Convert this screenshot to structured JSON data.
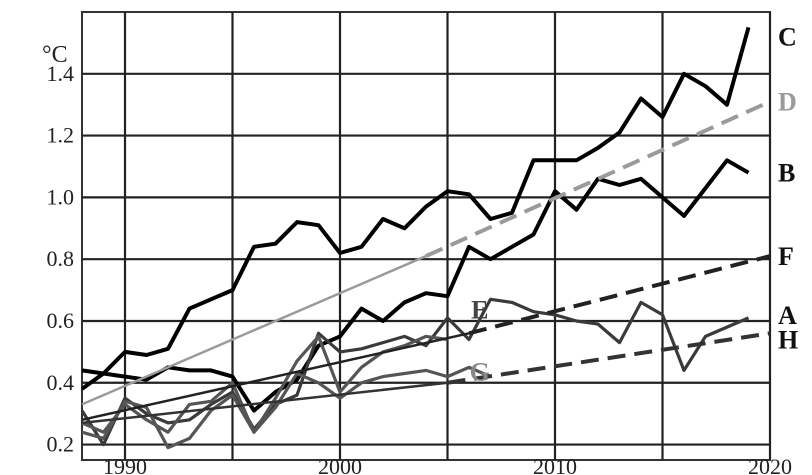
{
  "chart_data": {
    "type": "line",
    "title": "",
    "xlabel": "",
    "ylabel": "°C",
    "xlim": [
      1988,
      2020
    ],
    "ylim": [
      0.15,
      1.6
    ],
    "x_ticks": [
      1990,
      2000,
      2010,
      2020
    ],
    "y_ticks": [
      0.2,
      0.4,
      0.6,
      0.8,
      1.0,
      1.2,
      1.4
    ],
    "grid": true,
    "series": [
      {
        "name": "C",
        "color": "#000000",
        "style": "solid",
        "x": [
          1988,
          1989,
          1990,
          1991,
          1992,
          1993,
          1994,
          1995,
          1996,
          1997,
          1998,
          1999,
          2000,
          2001,
          2002,
          2003,
          2004,
          2005,
          2006,
          2007,
          2008,
          2009,
          2010,
          2011,
          2012,
          2013,
          2014,
          2015,
          2016,
          2017,
          2018,
          2019
        ],
        "y": [
          0.44,
          0.43,
          0.5,
          0.49,
          0.51,
          0.64,
          0.67,
          0.7,
          0.84,
          0.85,
          0.92,
          0.91,
          0.82,
          0.84,
          0.93,
          0.9,
          0.97,
          1.02,
          1.01,
          0.93,
          0.95,
          1.12,
          1.12,
          1.12,
          1.16,
          1.21,
          1.32,
          1.26,
          1.4,
          1.36,
          1.3,
          1.55
        ]
      },
      {
        "name": "B",
        "color": "#000000",
        "style": "solid",
        "x": [
          1988,
          1989,
          1990,
          1991,
          1992,
          1993,
          1994,
          1995,
          1996,
          1997,
          1998,
          1999,
          2000,
          2001,
          2002,
          2003,
          2004,
          2005,
          2006,
          2007,
          2008,
          2009,
          2010,
          2011,
          2012,
          2013,
          2014,
          2015,
          2016,
          2017,
          2018,
          2019
        ],
        "y": [
          0.38,
          0.43,
          0.42,
          0.41,
          0.45,
          0.44,
          0.44,
          0.42,
          0.31,
          0.37,
          0.41,
          0.52,
          0.55,
          0.64,
          0.6,
          0.66,
          0.69,
          0.68,
          0.84,
          0.8,
          0.84,
          0.88,
          1.02,
          0.96,
          1.06,
          1.04,
          1.06,
          1.0,
          0.94,
          1.03,
          1.12,
          1.08
        ]
      },
      {
        "name": "A",
        "color": "#3a3a3a",
        "style": "solid",
        "x": [
          1988,
          1989,
          1990,
          1991,
          1992,
          1993,
          1994,
          1995,
          1996,
          1997,
          1998,
          1999,
          2000,
          2001,
          2002,
          2003,
          2004,
          2005,
          2006,
          2007,
          2008,
          2009,
          2010,
          2011,
          2012,
          2013,
          2014,
          2015,
          2016,
          2017,
          2018,
          2019
        ],
        "y": [
          0.31,
          0.2,
          0.35,
          0.3,
          0.27,
          0.28,
          0.33,
          0.37,
          0.25,
          0.33,
          0.36,
          0.56,
          0.5,
          0.51,
          0.53,
          0.55,
          0.52,
          0.61,
          0.54,
          0.67,
          0.66,
          0.63,
          0.62,
          0.6,
          0.59,
          0.53,
          0.66,
          0.62,
          0.44,
          0.55,
          0.58,
          0.61
        ]
      },
      {
        "name": "",
        "color": "#555555",
        "style": "solid",
        "x": [
          1988,
          1989,
          1990,
          1991,
          1992,
          1993,
          1994,
          1995,
          1996,
          1997,
          1998,
          1999,
          2000,
          2001,
          2002,
          2003,
          2004,
          2005
        ],
        "y": [
          0.27,
          0.24,
          0.33,
          0.28,
          0.24,
          0.33,
          0.34,
          0.4,
          0.24,
          0.35,
          0.47,
          0.55,
          0.37,
          0.45,
          0.5,
          0.52,
          0.55,
          0.54
        ]
      },
      {
        "name": "",
        "color": "#555555",
        "style": "solid",
        "x": [
          1988,
          1989,
          1990,
          1991,
          1992,
          1993,
          1994,
          1995,
          1996,
          1997,
          1998,
          1999,
          2000,
          2001,
          2002,
          2003,
          2004,
          2005,
          2006,
          2007
        ],
        "y": [
          0.24,
          0.22,
          0.34,
          0.32,
          0.19,
          0.22,
          0.31,
          0.36,
          0.24,
          0.32,
          0.43,
          0.4,
          0.35,
          0.4,
          0.42,
          0.43,
          0.44,
          0.42,
          0.45,
          0.42
        ]
      },
      {
        "name": "D",
        "color": "#9a9a9a",
        "style": "solid-then-dashed",
        "x": [
          1988,
          2004,
          2020
        ],
        "y": [
          0.33,
          0.81,
          1.31
        ]
      },
      {
        "name": "F",
        "color": "#222222",
        "style": "solid-then-dashed",
        "x": [
          1988,
          2006,
          2020
        ],
        "y": [
          0.28,
          0.56,
          0.81
        ]
      },
      {
        "name": "H",
        "color": "#333333",
        "style": "solid-then-dashed",
        "x": [
          1988,
          2005,
          2020
        ],
        "y": [
          0.27,
          0.4,
          0.56
        ]
      }
    ],
    "annotations": [
      {
        "text": "E",
        "x": 2006.5,
        "y": 0.64,
        "color": "#444444"
      },
      {
        "text": "G",
        "x": 2006.5,
        "y": 0.44,
        "color": "#888888"
      }
    ]
  }
}
